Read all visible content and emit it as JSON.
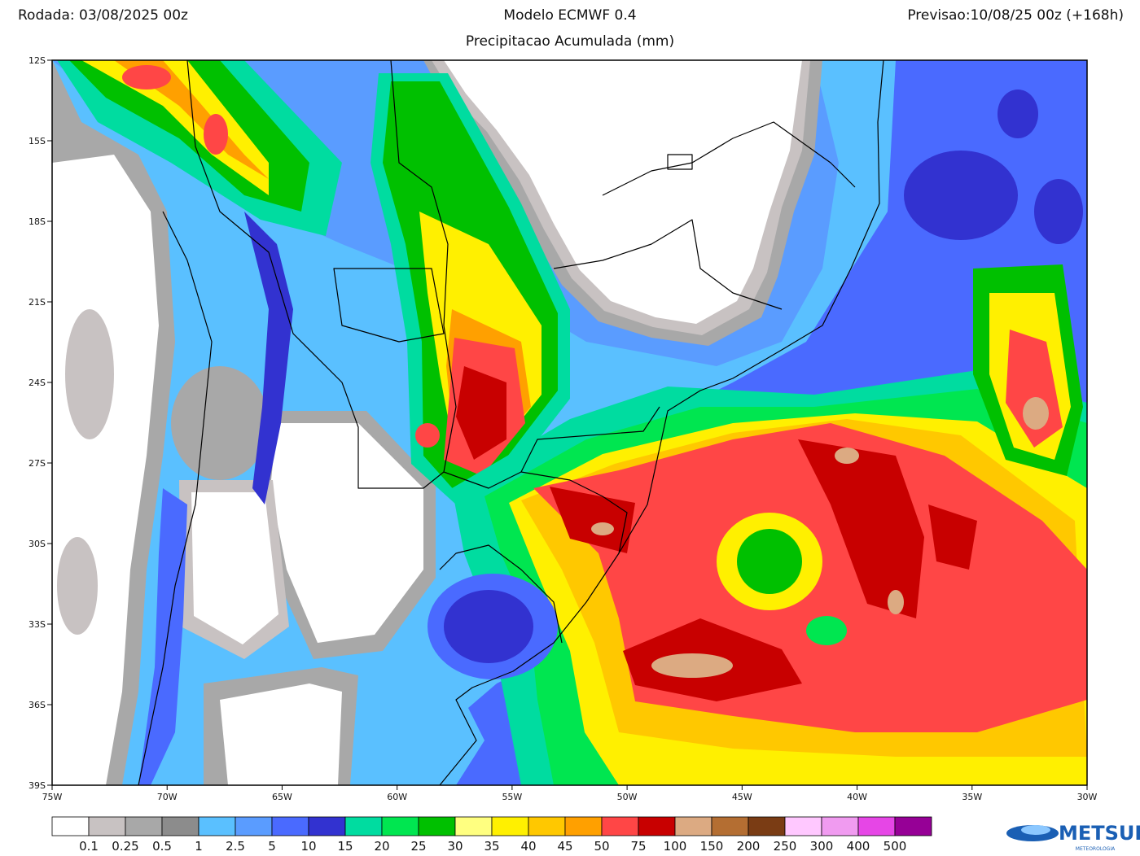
{
  "header": {
    "run": "Rodada: 03/08/2025 00z",
    "model": "Modelo ECMWF 0.4",
    "product": "Precipitacao Acumulada (mm)",
    "forecast": "Previsao:10/08/25 00z (+168h)"
  },
  "axes": {
    "lat_labels": [
      "12S",
      "15S",
      "18S",
      "21S",
      "24S",
      "27S",
      "30S",
      "33S",
      "36S",
      "39S"
    ],
    "lon_labels": [
      "75W",
      "70W",
      "65W",
      "60W",
      "55W",
      "50W",
      "45W",
      "40W",
      "35W",
      "30W"
    ]
  },
  "colorbar": {
    "colors": [
      "#ffffff",
      "#c8c2c2",
      "#a8a8a8",
      "#8c8c8c",
      "#5ac0ff",
      "#5a9cff",
      "#4a6aff",
      "#3232d0",
      "#00dca0",
      "#00e650",
      "#00c000",
      "#ffff80",
      "#fff000",
      "#ffc800",
      "#ffa000",
      "#ff4646",
      "#c80000",
      "#dcaa82",
      "#b46e32",
      "#7a3c14",
      "#ffc8ff",
      "#f09bf0",
      "#e646e6",
      "#960096"
    ],
    "labels": [
      "0.1",
      "0.25",
      "0.5",
      "1",
      "2.5",
      "5",
      "10",
      "15",
      "20",
      "25",
      "30",
      "35",
      "40",
      "45",
      "50",
      "75",
      "100",
      "150",
      "200",
      "250",
      "300",
      "400",
      "500"
    ]
  },
  "logo": {
    "name": "METSUL",
    "tagline": "METEOROLOGIA"
  }
}
